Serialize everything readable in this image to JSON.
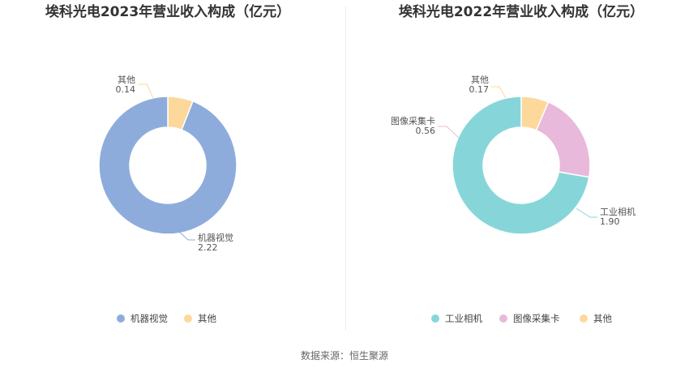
{
  "source": "数据来源：恒生聚源",
  "chart_data": [
    {
      "type": "pie",
      "title": "埃科光电2023年营业收入构成（亿元）",
      "categories": [
        "机器视觉",
        "其他"
      ],
      "values": [
        2.22,
        0.14
      ],
      "value_labels": [
        "2.22",
        "0.14"
      ],
      "colors": [
        "#8eacdb",
        "#fdd89b"
      ],
      "legend_position": "bottom"
    },
    {
      "type": "pie",
      "title": "埃科光电2022年营业收入构成（亿元）",
      "categories": [
        "工业相机",
        "图像采集卡",
        "其他"
      ],
      "values": [
        1.9,
        0.56,
        0.17
      ],
      "value_labels": [
        "1.90",
        "0.56",
        "0.17"
      ],
      "colors": [
        "#86d6d9",
        "#e8b9da",
        "#fdd89b"
      ],
      "legend_position": "bottom"
    }
  ]
}
